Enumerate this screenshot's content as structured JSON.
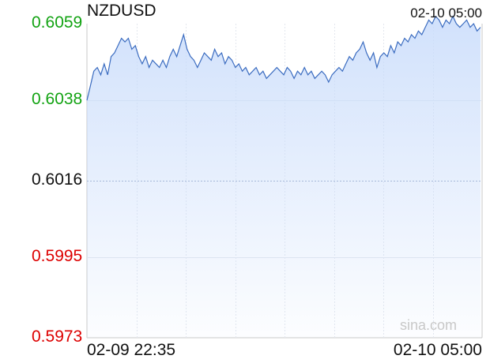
{
  "chart_data": {
    "type": "area",
    "title": "NZDUSD",
    "timestamp": "02-10 05:00",
    "y_ticks": [
      {
        "label": "0.6059",
        "value": 0.6059,
        "color": "#13a313"
      },
      {
        "label": "0.6038",
        "value": 0.6038,
        "color": "#13a313"
      },
      {
        "label": "0.6016",
        "value": 0.6016,
        "color": "#111111"
      },
      {
        "label": "0.5995",
        "value": 0.5995,
        "color": "#dd0000"
      },
      {
        "label": "0.5973",
        "value": 0.5973,
        "color": "#dd0000"
      }
    ],
    "ylim": [
      0.5973,
      0.6059
    ],
    "reference_value": 0.6016,
    "x_tick_labels": [
      "02-09 22:35",
      "02-10 05:00"
    ],
    "grid": true,
    "watermark": "sina.com",
    "colors": {
      "line": "#3b6cc0",
      "fill": "#c9dcfb",
      "up": "#13a313",
      "down": "#dd0000"
    },
    "series": [
      {
        "values": [
          0.6038,
          0.6042,
          0.6046,
          0.6047,
          0.6045,
          0.6048,
          0.6045,
          0.605,
          0.6051,
          0.6053,
          0.6055,
          0.6054,
          0.6055,
          0.6052,
          0.6053,
          0.605,
          0.6048,
          0.605,
          0.6047,
          0.6049,
          0.6048,
          0.6047,
          0.6049,
          0.6047,
          0.605,
          0.6052,
          0.605,
          0.6053,
          0.6056,
          0.6052,
          0.605,
          0.6049,
          0.6047,
          0.6049,
          0.6051,
          0.605,
          0.6049,
          0.6052,
          0.605,
          0.6051,
          0.6048,
          0.605,
          0.6049,
          0.6047,
          0.6048,
          0.6046,
          0.6047,
          0.6045,
          0.6046,
          0.6047,
          0.6045,
          0.6046,
          0.6044,
          0.6045,
          0.6046,
          0.6047,
          0.6046,
          0.6045,
          0.6047,
          0.6046,
          0.6044,
          0.6046,
          0.6045,
          0.6047,
          0.6045,
          0.6046,
          0.6044,
          0.6045,
          0.6046,
          0.6045,
          0.6043,
          0.6045,
          0.6046,
          0.6047,
          0.6046,
          0.6048,
          0.605,
          0.6049,
          0.6051,
          0.6052,
          0.6054,
          0.6051,
          0.6049,
          0.6051,
          0.6047,
          0.605,
          0.6051,
          0.605,
          0.6053,
          0.6051,
          0.6054,
          0.6053,
          0.6055,
          0.6054,
          0.6056,
          0.6055,
          0.6057,
          0.6056,
          0.6058,
          0.606,
          0.6059,
          0.6061,
          0.606,
          0.6058,
          0.606,
          0.6059,
          0.6061,
          0.6059,
          0.6058,
          0.6059,
          0.606,
          0.6058,
          0.6059,
          0.6057,
          0.6058
        ]
      }
    ]
  }
}
